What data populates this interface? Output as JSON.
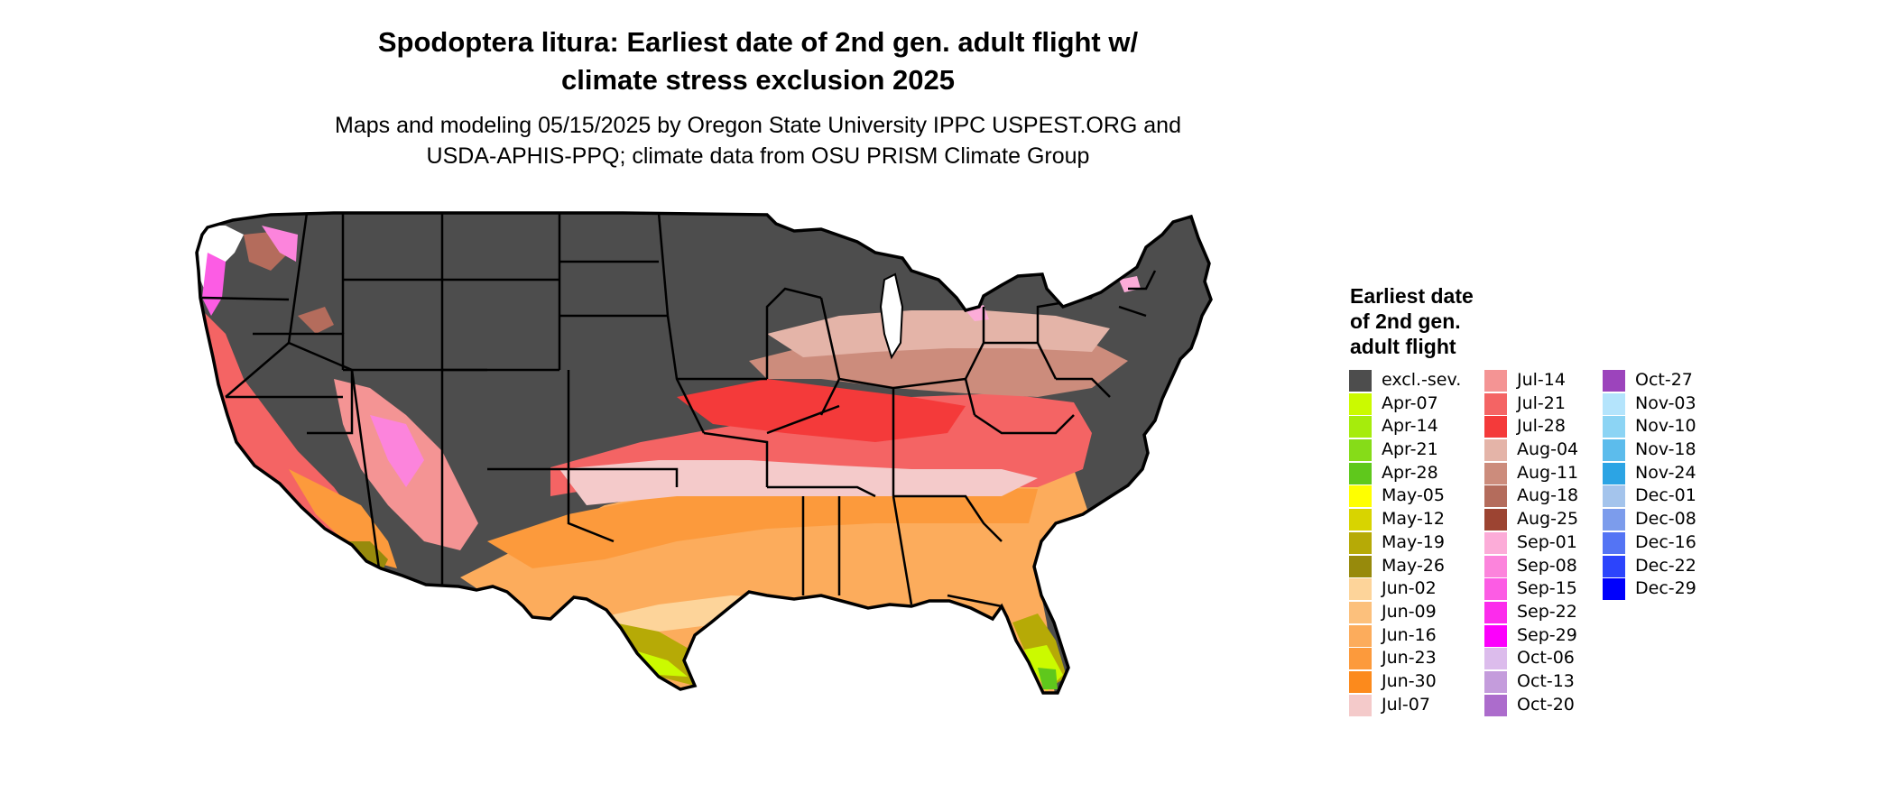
{
  "title": {
    "line1": "Spodoptera litura: Earliest date of 2nd gen. adult flight w/",
    "line2": "climate stress exclusion 2025"
  },
  "subtitle": {
    "line1": "Maps and modeling 05/15/2025 by Oregon State University IPPC USPEST.ORG and",
    "line2": "USDA-APHIS-PPQ; climate data from OSU PRISM Climate Group"
  },
  "map": {
    "region": "Contiguous United States",
    "state_boundary_color": "#000000",
    "background_color": "#ffffff"
  },
  "legend": {
    "title_lines": [
      "Earliest date",
      "of 2nd gen.",
      "adult flight"
    ],
    "columns": [
      [
        {
          "label": "excl.-sev.",
          "color": "#4d4d4d"
        },
        {
          "label": "Apr-07",
          "color": "#cbfa00"
        },
        {
          "label": "Apr-14",
          "color": "#a6ec0c"
        },
        {
          "label": "Apr-21",
          "color": "#86dc18"
        },
        {
          "label": "Apr-28",
          "color": "#5fc81c"
        },
        {
          "label": "May-05",
          "color": "#ffff00"
        },
        {
          "label": "May-12",
          "color": "#d8d400"
        },
        {
          "label": "May-19",
          "color": "#b6aa06"
        },
        {
          "label": "May-26",
          "color": "#978a0c"
        },
        {
          "label": "Jun-02",
          "color": "#fdd49a"
        },
        {
          "label": "Jun-09",
          "color": "#fcc07c"
        },
        {
          "label": "Jun-16",
          "color": "#fcac5c"
        },
        {
          "label": "Jun-23",
          "color": "#fc9a3c"
        },
        {
          "label": "Jun-30",
          "color": "#fc8a1c"
        },
        {
          "label": "Jul-07",
          "color": "#f4caca"
        }
      ],
      [
        {
          "label": "Jul-14",
          "color": "#f49494"
        },
        {
          "label": "Jul-21",
          "color": "#f46464"
        },
        {
          "label": "Jul-28",
          "color": "#f43a3a"
        },
        {
          "label": "Aug-04",
          "color": "#e4b4a8"
        },
        {
          "label": "Aug-11",
          "color": "#cc8c7c"
        },
        {
          "label": "Aug-18",
          "color": "#b46c5c"
        },
        {
          "label": "Aug-25",
          "color": "#9c4432"
        },
        {
          "label": "Sep-01",
          "color": "#fcacd8"
        },
        {
          "label": "Sep-08",
          "color": "#fc84dc"
        },
        {
          "label": "Sep-15",
          "color": "#fc5ce4"
        },
        {
          "label": "Sep-22",
          "color": "#fc2cec"
        },
        {
          "label": "Sep-29",
          "color": "#fc00fc"
        },
        {
          "label": "Oct-06",
          "color": "#dcbcec"
        },
        {
          "label": "Oct-13",
          "color": "#c49cdc"
        },
        {
          "label": "Oct-20",
          "color": "#ac6ccc"
        }
      ],
      [
        {
          "label": "Oct-27",
          "color": "#9c44bc"
        },
        {
          "label": "Nov-03",
          "color": "#b4e4fc"
        },
        {
          "label": "Nov-10",
          "color": "#8cd4f4"
        },
        {
          "label": "Nov-18",
          "color": "#5cbcec"
        },
        {
          "label": "Nov-24",
          "color": "#2ca4e4"
        },
        {
          "label": "Dec-01",
          "color": "#a4c4ec"
        },
        {
          "label": "Dec-08",
          "color": "#7c9cec"
        },
        {
          "label": "Dec-16",
          "color": "#5474f4"
        },
        {
          "label": "Dec-22",
          "color": "#2c44fc"
        },
        {
          "label": "Dec-29",
          "color": "#0000fc"
        }
      ]
    ]
  }
}
